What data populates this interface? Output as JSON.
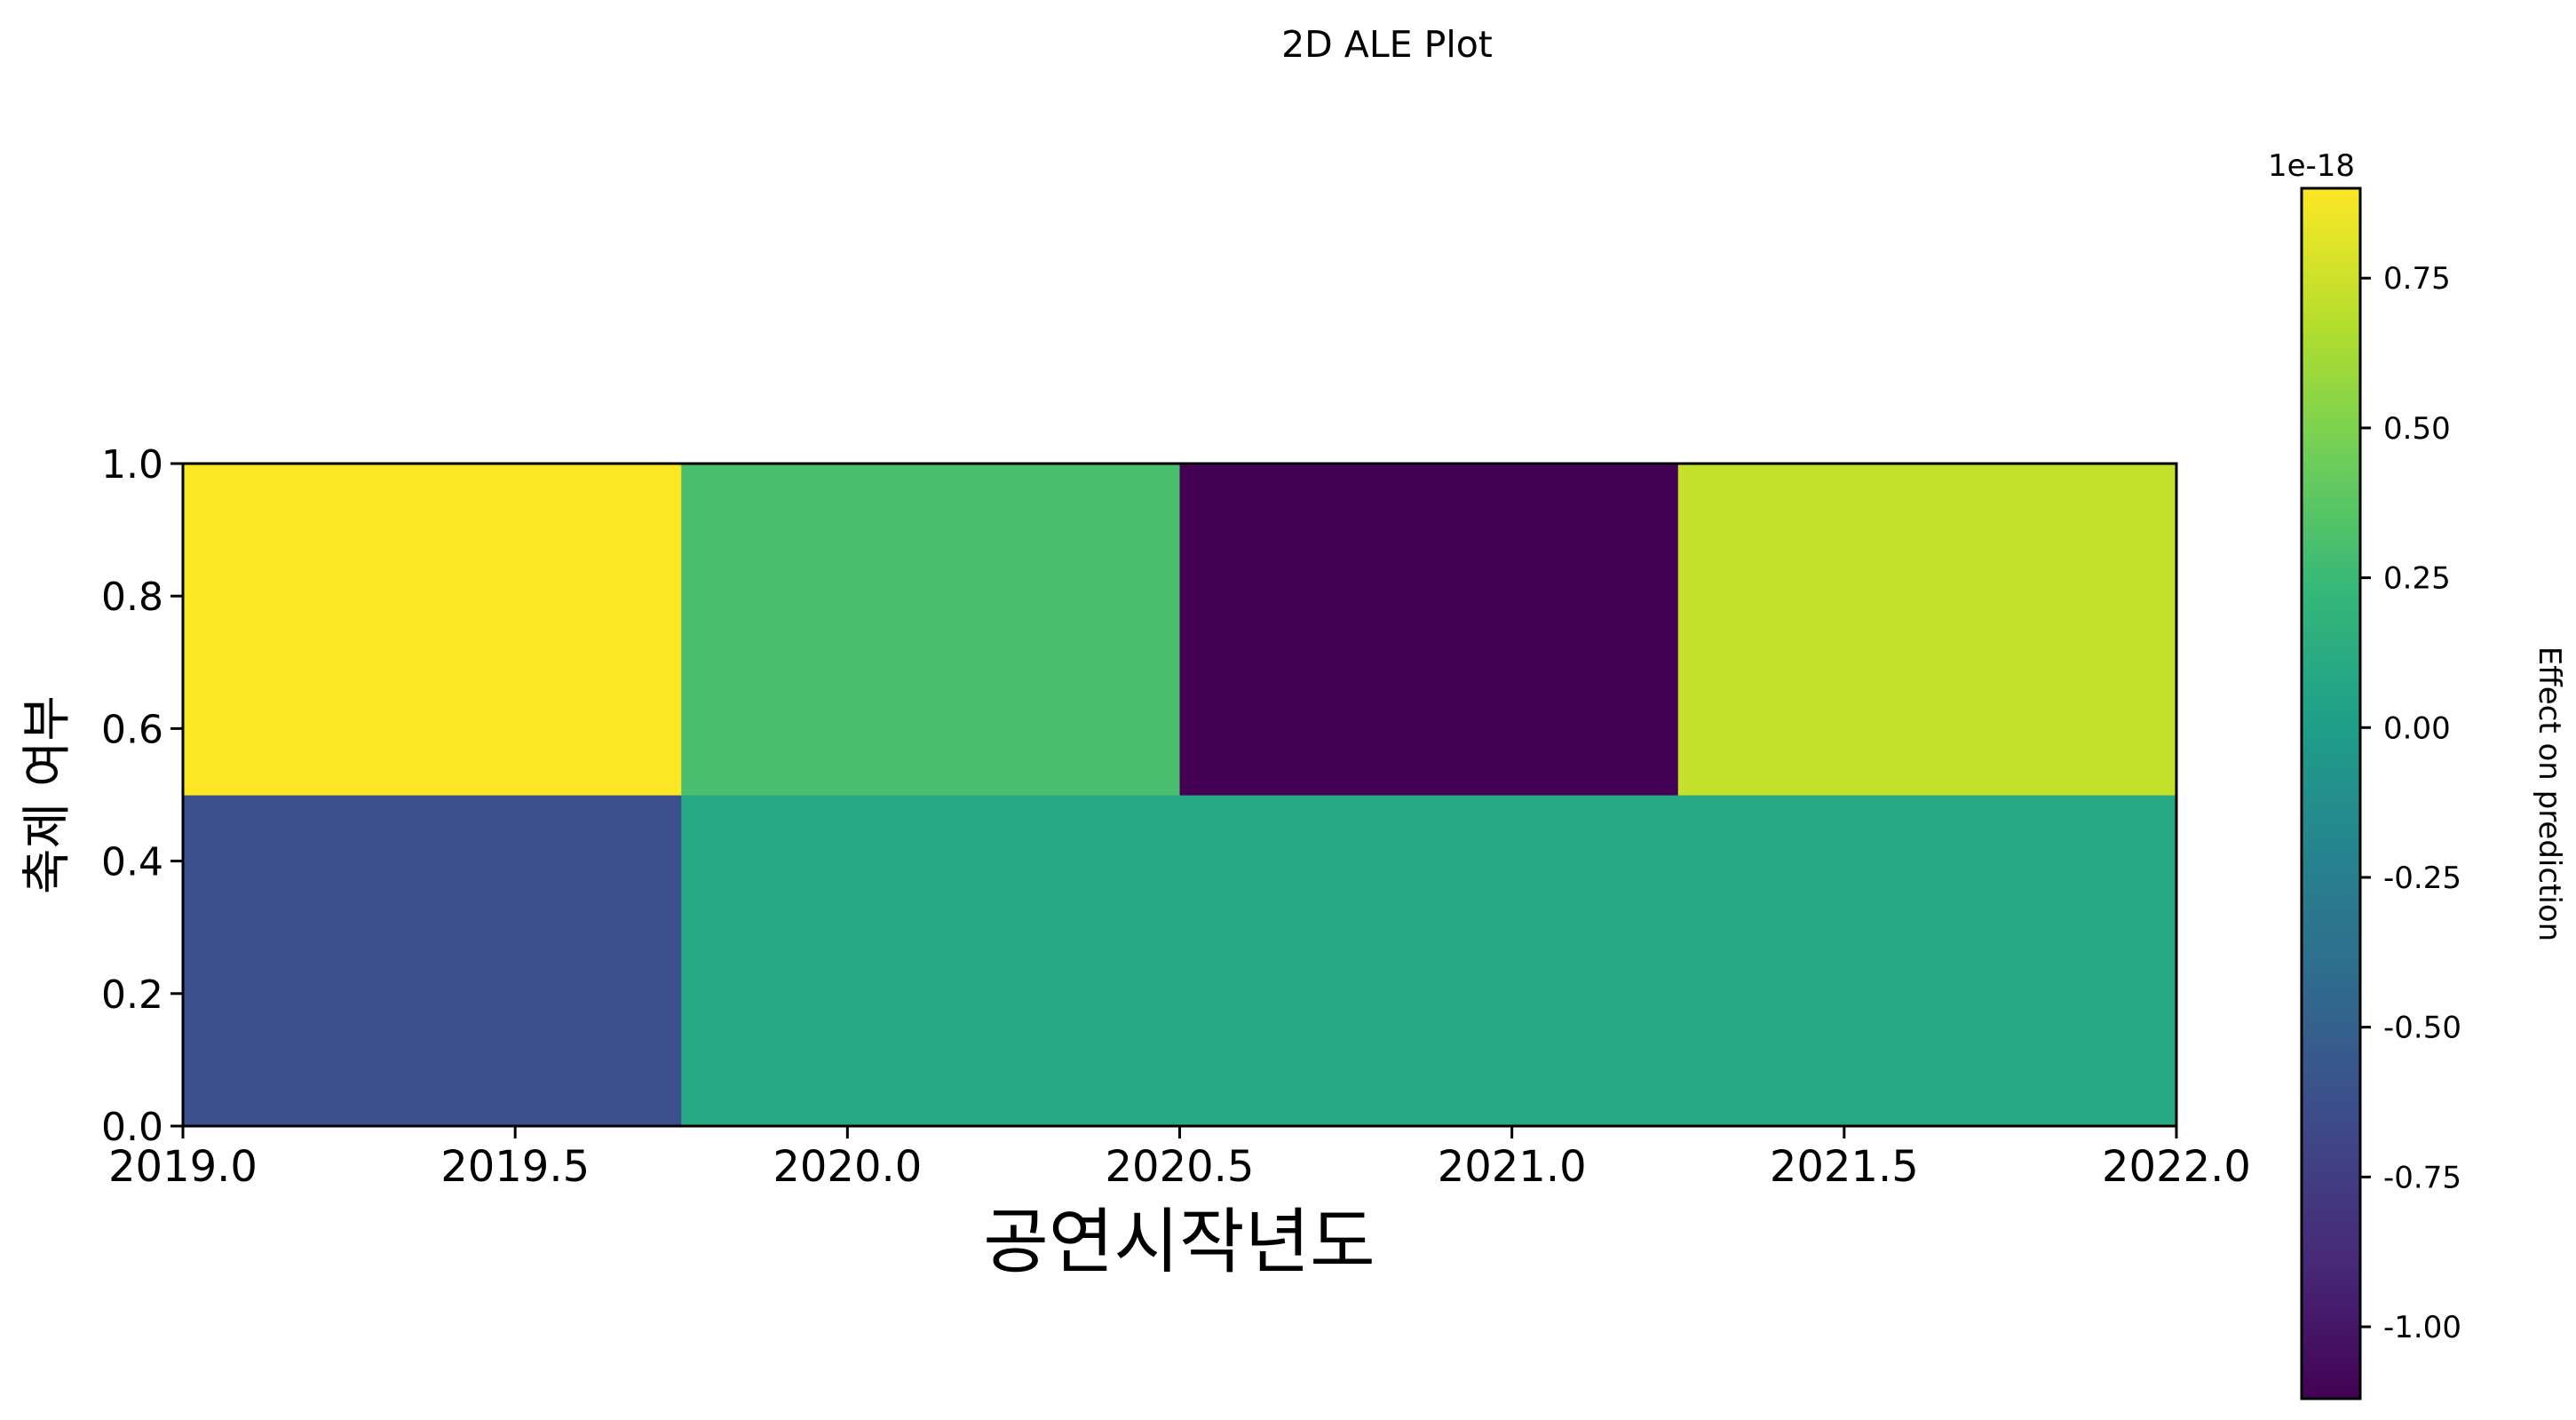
{
  "chart_data": {
    "type": "heatmap",
    "title": "2D ALE Plot",
    "xlabel": "공연시작년도",
    "ylabel": "축제 여부",
    "xlim": [
      2019.0,
      2022.0
    ],
    "ylim": [
      0.0,
      1.0
    ],
    "x_ticks": [
      "2019.0",
      "2019.5",
      "2020.0",
      "2020.5",
      "2021.0",
      "2021.5",
      "2022.0"
    ],
    "x_tick_values": [
      2019.0,
      2019.5,
      2020.0,
      2020.5,
      2021.0,
      2021.5,
      2022.0
    ],
    "y_ticks": [
      "0.0",
      "0.2",
      "0.4",
      "0.6",
      "0.8",
      "1.0"
    ],
    "y_tick_values": [
      0.0,
      0.2,
      0.4,
      0.6,
      0.8,
      1.0
    ],
    "x_edges": [
      2019.0,
      2019.75,
      2020.5,
      2021.25,
      2022.0
    ],
    "y_edges": [
      0.0,
      0.5,
      1.0
    ],
    "z": [
      [
        -0.62,
        0.09,
        0.09,
        0.09
      ],
      [
        0.9,
        0.3,
        -1.12,
        0.72
      ]
    ],
    "z_unit_exponent": -18,
    "grid": false,
    "colorbar": {
      "label": "Effect on prediction",
      "offset_text": "1e-18",
      "vmin": -1.12,
      "vmax": 0.9,
      "ticks": [
        "0.75",
        "0.50",
        "0.25",
        "0.00",
        "-0.25",
        "-0.50",
        "-0.75",
        "-1.00"
      ],
      "tick_values": [
        0.75,
        0.5,
        0.25,
        0.0,
        -0.25,
        -0.5,
        -0.75,
        -1.0
      ],
      "colormap": "viridis"
    }
  }
}
